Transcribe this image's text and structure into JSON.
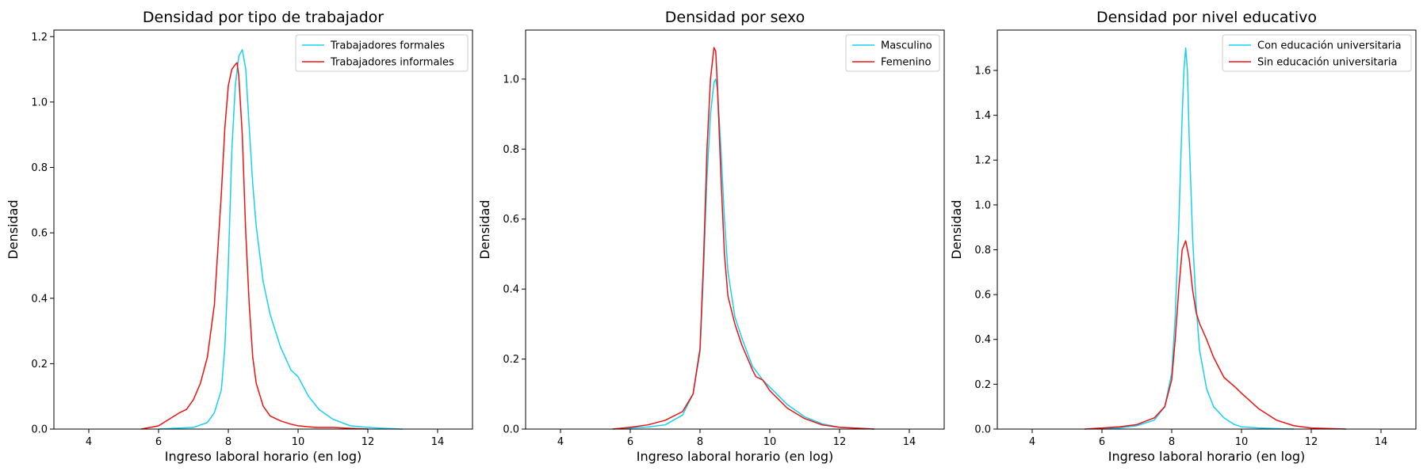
{
  "colors": {
    "series_a": "#17d0f0",
    "series_b": "#ee1111"
  },
  "chart_data": [
    {
      "type": "line",
      "title": "Densidad por tipo de trabajador",
      "xlabel": "Ingreso laboral horario (en log)",
      "ylabel": "Densidad",
      "xlim": [
        3,
        15
      ],
      "ylim": [
        0,
        1.22
      ],
      "xticks": [
        4,
        6,
        8,
        10,
        12,
        14
      ],
      "yticks": [
        0.0,
        0.2,
        0.4,
        0.6,
        0.8,
        1.0,
        1.2
      ],
      "legend_position": "top-right",
      "series": [
        {
          "name": "Trabajadores formales",
          "color": "#17d0f0",
          "x": [
            6.0,
            7.0,
            7.4,
            7.6,
            7.8,
            7.9,
            8.0,
            8.1,
            8.2,
            8.3,
            8.4,
            8.5,
            8.6,
            8.7,
            8.8,
            9.0,
            9.2,
            9.5,
            9.8,
            10.0,
            10.3,
            10.6,
            11.0,
            11.5,
            12.0,
            12.5,
            13.0
          ],
          "y": [
            0.0,
            0.005,
            0.02,
            0.05,
            0.12,
            0.25,
            0.5,
            0.85,
            1.05,
            1.14,
            1.16,
            1.1,
            0.92,
            0.75,
            0.62,
            0.45,
            0.35,
            0.25,
            0.18,
            0.16,
            0.1,
            0.06,
            0.03,
            0.01,
            0.005,
            0.002,
            0.0
          ]
        },
        {
          "name": "Trabajadores informales",
          "color": "#ee1111",
          "x": [
            5.5,
            6.0,
            6.3,
            6.6,
            6.8,
            7.0,
            7.2,
            7.4,
            7.6,
            7.8,
            7.9,
            8.0,
            8.1,
            8.2,
            8.25,
            8.3,
            8.4,
            8.5,
            8.6,
            8.7,
            8.8,
            9.0,
            9.2,
            9.5,
            9.8,
            10.0,
            10.5,
            11.0,
            11.5,
            12.0
          ],
          "y": [
            0.0,
            0.01,
            0.03,
            0.05,
            0.06,
            0.09,
            0.14,
            0.22,
            0.38,
            0.72,
            0.92,
            1.05,
            1.1,
            1.115,
            1.12,
            1.08,
            0.9,
            0.6,
            0.38,
            0.22,
            0.14,
            0.07,
            0.04,
            0.025,
            0.015,
            0.01,
            0.005,
            0.005,
            0.002,
            0.0
          ]
        }
      ]
    },
    {
      "type": "line",
      "title": "Densidad por sexo",
      "xlabel": "Ingreso laboral horario (en log)",
      "ylabel": "Densidad",
      "xlim": [
        3,
        15
      ],
      "ylim": [
        0,
        1.14
      ],
      "xticks": [
        4,
        6,
        8,
        10,
        12,
        14
      ],
      "yticks": [
        0.0,
        0.2,
        0.4,
        0.6,
        0.8,
        1.0
      ],
      "legend_position": "top-right",
      "series": [
        {
          "name": "Masculino",
          "color": "#17d0f0",
          "x": [
            5.5,
            6.0,
            6.5,
            7.0,
            7.5,
            7.8,
            8.0,
            8.1,
            8.2,
            8.3,
            8.4,
            8.45,
            8.5,
            8.6,
            8.7,
            8.8,
            9.0,
            9.2,
            9.5,
            9.8,
            10.0,
            10.5,
            11.0,
            11.5,
            12.0,
            13.0
          ],
          "y": [
            0.0,
            0.003,
            0.006,
            0.012,
            0.04,
            0.1,
            0.22,
            0.45,
            0.72,
            0.9,
            0.99,
            1.0,
            0.97,
            0.8,
            0.6,
            0.45,
            0.32,
            0.26,
            0.18,
            0.14,
            0.12,
            0.07,
            0.035,
            0.015,
            0.005,
            0.0
          ]
        },
        {
          "name": "Femenino",
          "color": "#ee1111",
          "x": [
            5.5,
            6.0,
            6.5,
            7.0,
            7.5,
            7.8,
            8.0,
            8.1,
            8.2,
            8.3,
            8.4,
            8.45,
            8.5,
            8.6,
            8.7,
            8.8,
            9.0,
            9.2,
            9.5,
            9.6,
            9.8,
            10.0,
            10.5,
            11.0,
            11.5,
            12.0,
            13.0
          ],
          "y": [
            0.0,
            0.005,
            0.012,
            0.025,
            0.05,
            0.1,
            0.23,
            0.48,
            0.8,
            1.0,
            1.09,
            1.08,
            0.98,
            0.72,
            0.5,
            0.38,
            0.3,
            0.24,
            0.17,
            0.15,
            0.14,
            0.11,
            0.06,
            0.03,
            0.012,
            0.005,
            0.0
          ]
        }
      ]
    },
    {
      "type": "line",
      "title": "Densidad por nivel educativo",
      "xlabel": "Ingreso laboral horario (en log)",
      "ylabel": "Densidad",
      "xlim": [
        3,
        15
      ],
      "ylim": [
        0,
        1.78
      ],
      "xticks": [
        4,
        6,
        8,
        10,
        12,
        14
      ],
      "yticks": [
        0.0,
        0.2,
        0.4,
        0.6,
        0.8,
        1.0,
        1.2,
        1.4,
        1.6
      ],
      "legend_position": "top-right",
      "series": [
        {
          "name": "Con educación universitaria",
          "color": "#17d0f0",
          "x": [
            6.0,
            6.5,
            7.0,
            7.5,
            7.8,
            8.0,
            8.1,
            8.2,
            8.3,
            8.35,
            8.4,
            8.45,
            8.5,
            8.6,
            8.7,
            8.8,
            9.0,
            9.2,
            9.5,
            9.8,
            10.0,
            10.5,
            11.0,
            11.5
          ],
          "y": [
            0.0,
            0.005,
            0.015,
            0.04,
            0.1,
            0.25,
            0.5,
            0.9,
            1.4,
            1.6,
            1.7,
            1.6,
            1.3,
            0.85,
            0.55,
            0.35,
            0.18,
            0.1,
            0.05,
            0.02,
            0.01,
            0.005,
            0.002,
            0.0
          ]
        },
        {
          "name": "Sin educación universitaria",
          "color": "#ee1111",
          "x": [
            5.5,
            6.0,
            6.5,
            7.0,
            7.5,
            7.8,
            8.0,
            8.1,
            8.2,
            8.3,
            8.4,
            8.5,
            8.6,
            8.7,
            8.8,
            9.0,
            9.2,
            9.5,
            9.8,
            10.0,
            10.5,
            11.0,
            11.5,
            12.0,
            13.0
          ],
          "y": [
            0.0,
            0.005,
            0.01,
            0.02,
            0.05,
            0.1,
            0.22,
            0.4,
            0.62,
            0.8,
            0.84,
            0.76,
            0.62,
            0.52,
            0.47,
            0.4,
            0.32,
            0.23,
            0.19,
            0.16,
            0.09,
            0.04,
            0.015,
            0.005,
            0.0
          ]
        }
      ]
    }
  ]
}
